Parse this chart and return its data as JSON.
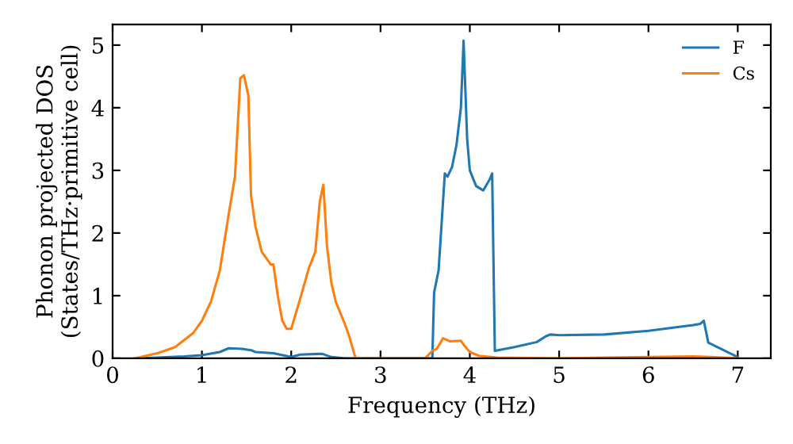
{
  "chart_data": {
    "type": "line",
    "xlabel": "Frequency (THz)",
    "ylabel": "Phonon projected DOS\n(States/THz·primitive cell)",
    "xlim": [
      0,
      7.37
    ],
    "ylim": [
      0,
      5.33
    ],
    "xticks": [
      0,
      1,
      2,
      3,
      4,
      5,
      6,
      7
    ],
    "yticks": [
      0,
      1,
      2,
      3,
      4,
      5
    ],
    "legend": "top right",
    "grid": false,
    "series": [
      {
        "name": "F",
        "color": "#1f77b4",
        "x": [
          0.3,
          0.8,
          1.0,
          1.2,
          1.3,
          1.45,
          1.55,
          1.6,
          1.8,
          2.0,
          2.1,
          2.3,
          2.35,
          2.45,
          2.6,
          3.58,
          3.6,
          3.65,
          3.72,
          3.75,
          3.8,
          3.85,
          3.9,
          3.93,
          3.97,
          4.0,
          4.07,
          4.15,
          4.22,
          4.25,
          4.28,
          4.5,
          4.75,
          4.85,
          4.9,
          5.0,
          5.5,
          6.0,
          6.5,
          6.58,
          6.62,
          6.67,
          7.0
        ],
        "values": [
          0,
          0.03,
          0.05,
          0.1,
          0.16,
          0.15,
          0.13,
          0.1,
          0.08,
          0.02,
          0.06,
          0.07,
          0.07,
          0.02,
          0,
          0,
          1.05,
          1.4,
          2.95,
          2.9,
          3.05,
          3.4,
          4.0,
          5.07,
          3.5,
          3.0,
          2.75,
          2.68,
          2.85,
          2.95,
          0.12,
          0.18,
          0.26,
          0.35,
          0.38,
          0.37,
          0.38,
          0.44,
          0.53,
          0.55,
          0.6,
          0.25,
          0.02
        ]
      },
      {
        "name": "Cs",
        "color": "#ff7f0e",
        "x": [
          0.25,
          0.5,
          0.7,
          0.9,
          1.0,
          1.1,
          1.2,
          1.3,
          1.37,
          1.43,
          1.47,
          1.52,
          1.55,
          1.6,
          1.67,
          1.77,
          1.8,
          1.85,
          1.9,
          1.95,
          2.0,
          2.1,
          2.2,
          2.27,
          2.32,
          2.36,
          2.4,
          2.45,
          2.5,
          2.6,
          2.65,
          2.72,
          3.5,
          3.58,
          3.63,
          3.7,
          3.78,
          3.9,
          3.94,
          4.0,
          4.1,
          4.3,
          5.0,
          6.5,
          6.7,
          7.0
        ],
        "values": [
          0,
          0.08,
          0.18,
          0.4,
          0.6,
          0.9,
          1.4,
          2.3,
          2.9,
          4.47,
          4.52,
          4.2,
          2.6,
          2.1,
          1.7,
          1.5,
          1.5,
          1.0,
          0.6,
          0.47,
          0.47,
          0.95,
          1.45,
          1.7,
          2.5,
          2.77,
          1.8,
          1.2,
          0.9,
          0.55,
          0.35,
          0,
          0,
          0.12,
          0.15,
          0.32,
          0.27,
          0.28,
          0.2,
          0.1,
          0.04,
          0.01,
          0,
          0.03,
          0.02,
          0
        ]
      }
    ]
  }
}
